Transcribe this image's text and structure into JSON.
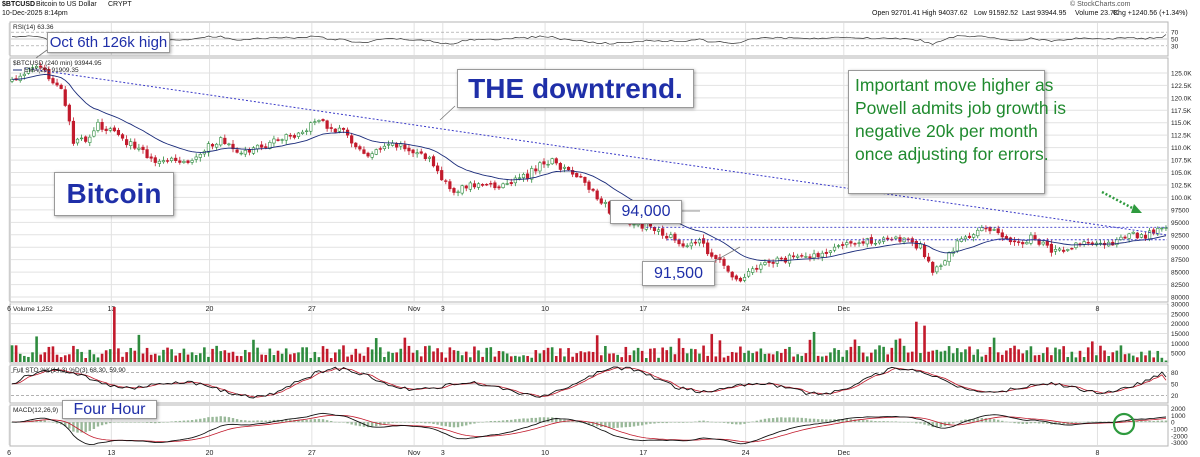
{
  "header": {
    "symbol": "$BTCUSD",
    "name": "Bitcoin to US Dollar",
    "exchange": "CRYPT",
    "datetime": "10-Dec-2025 8:14pm",
    "open": "Open 92701.41",
    "high": "High 94037.62",
    "low": "Low 91592.52",
    "last": "Last 93944.95",
    "volume": "Volume 23.7K",
    "chg": "Chg +1240.56 (+1.34%)",
    "watermark": "© StockCharts.com"
  },
  "panels": {
    "rsi_label": "RSI(14) 63.36",
    "price_label": "$BTCUSD (240 min) 93944.95",
    "ema_label": "EMA(20) 91909.35",
    "volume_label": "Volume 1,252",
    "sto_label": "Full STO %K(14,3) %D(3) 68.30, 59.90",
    "macd_label": "MACD(12,26,9)"
  },
  "annotations": {
    "oct_high": "Oct 6th 126k high",
    "downtrend": "THE downtrend.",
    "bitcoin": "Bitcoin",
    "level_94000": "94,000",
    "level_91500": "91,500",
    "powell_lines": [
      "Important move higher as",
      "Powell admits job growth is",
      "negative 20k per month",
      "once adjusting for errors."
    ],
    "four_hour": "Four Hour"
  },
  "colors": {
    "up": "#2e8b3e",
    "down": "#c21a2c",
    "ema": "#1a2b7a",
    "trendline": "#3a3ac8",
    "annotation_blue": "#1f2fa8",
    "annotation_green": "#1f8a2e",
    "grid": "#e2e2e2",
    "sto_k": "#111111",
    "sto_d": "#c21a2c",
    "macd_hist": "#9ab99a"
  },
  "chart_data": [
    {
      "type": "line",
      "name": "RSI(14)",
      "ylim": [
        0,
        100
      ],
      "yticks": [
        30,
        50,
        70
      ],
      "ytick_labels": [
        "30",
        "50",
        "70"
      ],
      "last_value": 63.36
    },
    {
      "type": "candlestick",
      "title": "$BTCUSD (240 min)",
      "x_tick_labels": [
        "6",
        "13",
        "20",
        "27",
        "Nov",
        "3",
        "10",
        "17",
        "24",
        "Dec",
        "8"
      ],
      "ylim": [
        79000,
        128000
      ],
      "yticks": [
        80000,
        82500,
        85000,
        87500,
        90000,
        92500,
        95000,
        97500,
        100000,
        102500,
        105000,
        107500,
        110000,
        112500,
        115000,
        117500,
        120000,
        122500,
        125000
      ],
      "ytick_labels": [
        "80000",
        "82500",
        "85000",
        "87500",
        "90000",
        "92500",
        "95000",
        "97500",
        "100.0K",
        "102.5K",
        "105.0K",
        "107.5K",
        "110.0K",
        "112.5K",
        "115.0K",
        "117.5K",
        "120.0K",
        "122.5K",
        "125.0K"
      ],
      "close_path": [
        [
          0,
          123500
        ],
        [
          3,
          125000
        ],
        [
          6,
          126000
        ],
        [
          9,
          124500
        ],
        [
          12,
          122000
        ],
        [
          15,
          111000
        ],
        [
          18,
          111500
        ],
        [
          21,
          114500
        ],
        [
          24,
          113500
        ],
        [
          27,
          111500
        ],
        [
          30,
          110500
        ],
        [
          33,
          108500
        ],
        [
          36,
          107000
        ],
        [
          39,
          108500
        ],
        [
          42,
          107000
        ],
        [
          45,
          108000
        ],
        [
          48,
          110500
        ],
        [
          51,
          111500
        ],
        [
          54,
          109500
        ],
        [
          57,
          109000
        ],
        [
          60,
          110000
        ],
        [
          63,
          111000
        ],
        [
          66,
          112000
        ],
        [
          69,
          112500
        ],
        [
          72,
          114000
        ],
        [
          75,
          115500
        ],
        [
          78,
          114000
        ],
        [
          81,
          113000
        ],
        [
          84,
          110500
        ],
        [
          87,
          108000
        ],
        [
          90,
          109500
        ],
        [
          93,
          110500
        ],
        [
          96,
          110000
        ],
        [
          99,
          109000
        ],
        [
          102,
          107500
        ],
        [
          105,
          104000
        ],
        [
          108,
          101500
        ],
        [
          111,
          102000
        ],
        [
          114,
          103000
        ],
        [
          117,
          102000
        ],
        [
          120,
          102500
        ],
        [
          123,
          103500
        ],
        [
          126,
          104500
        ],
        [
          129,
          106500
        ],
        [
          132,
          107500
        ],
        [
          135,
          105500
        ],
        [
          138,
          104500
        ],
        [
          141,
          102000
        ],
        [
          144,
          99500
        ],
        [
          147,
          96500
        ],
        [
          150,
          95000
        ],
        [
          153,
          94500
        ],
        [
          156,
          94000
        ],
        [
          159,
          92500
        ],
        [
          162,
          91500
        ],
        [
          165,
          90500
        ],
        [
          168,
          91000
        ],
        [
          171,
          88500
        ],
        [
          174,
          86000
        ],
        [
          177,
          83500
        ],
        [
          180,
          84500
        ],
        [
          183,
          86500
        ],
        [
          186,
          87000
        ],
        [
          189,
          87500
        ],
        [
          192,
          88500
        ],
        [
          195,
          88000
        ],
        [
          198,
          88500
        ],
        [
          201,
          90500
        ],
        [
          204,
          91000
        ],
        [
          207,
          91500
        ],
        [
          210,
          91000
        ],
        [
          213,
          92000
        ],
        [
          216,
          91500
        ],
        [
          219,
          91000
        ],
        [
          222,
          90000
        ],
        [
          225,
          85500
        ],
        [
          228,
          87000
        ],
        [
          231,
          91000
        ],
        [
          234,
          92500
        ],
        [
          237,
          93500
        ],
        [
          240,
          93000
        ],
        [
          243,
          92000
        ],
        [
          246,
          91000
        ],
        [
          249,
          92000
        ],
        [
          252,
          90500
        ],
        [
          255,
          89000
        ],
        [
          258,
          89500
        ],
        [
          261,
          90500
        ],
        [
          264,
          91000
        ],
        [
          267,
          90000
        ],
        [
          270,
          91000
        ],
        [
          273,
          92500
        ],
        [
          276,
          92000
        ],
        [
          279,
          93000
        ],
        [
          282,
          93944.95
        ]
      ],
      "ema20_last": 91909.35,
      "trendline": [
        [
          3,
          126000
        ],
        [
          282,
          92500
        ]
      ],
      "levels": [
        94000,
        91500
      ],
      "last": 93944.95
    },
    {
      "type": "bar",
      "name": "Volume",
      "ylim": [
        0,
        30000
      ],
      "yticks": [
        5000,
        10000,
        15000,
        20000,
        25000,
        30000
      ],
      "ytick_labels": [
        "5000",
        "10000",
        "15000",
        "20000",
        "25000",
        "30000"
      ],
      "last_value": 1252
    },
    {
      "type": "line",
      "name": "Full STO %K(14,3) %D(3)",
      "ylim": [
        0,
        100
      ],
      "yticks": [
        20,
        50,
        80
      ],
      "ytick_labels": [
        "20",
        "50",
        "80"
      ],
      "k_last": 68.3,
      "d_last": 59.9
    },
    {
      "type": "line",
      "name": "MACD(12,26,9)",
      "ylim": [
        -3500,
        2500
      ],
      "yticks": [
        -3000,
        -2000,
        -1000,
        0,
        1000,
        2000
      ],
      "ytick_labels": [
        "-3000",
        "-2000",
        "-1000",
        "0",
        "1000",
        "2000"
      ]
    }
  ]
}
